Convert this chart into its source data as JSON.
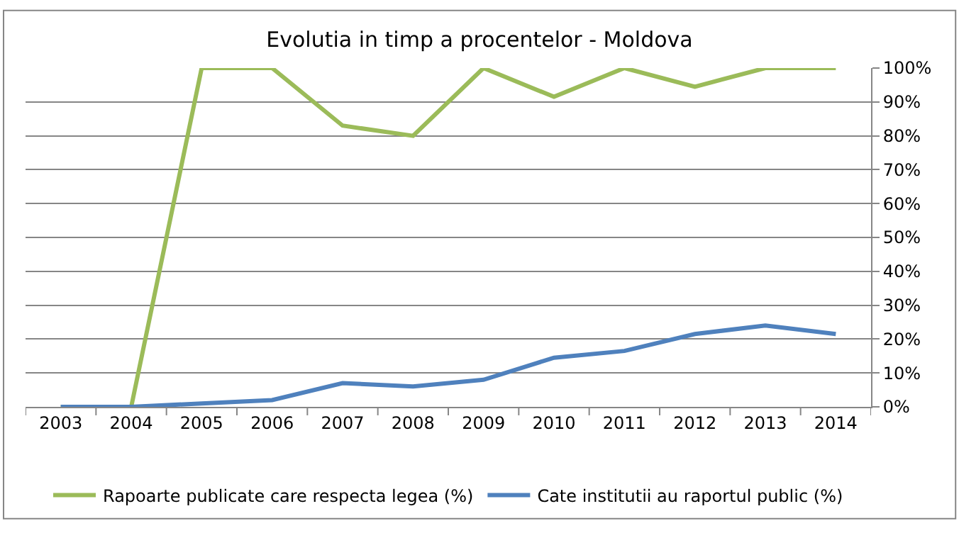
{
  "chart_data": {
    "type": "line",
    "title": "Evolutia in timp a procentelor - Moldova",
    "categories": [
      "2003",
      "2004",
      "2005",
      "2006",
      "2007",
      "2008",
      "2009",
      "2010",
      "2011",
      "2012",
      "2013",
      "2014"
    ],
    "series": [
      {
        "name": "Rapoarte publicate care respecta legea (%)",
        "color": "#9bbb59",
        "values": [
          0,
          0,
          100,
          100,
          83,
          80,
          100,
          91.5,
          100,
          94.5,
          100,
          100
        ]
      },
      {
        "name": "Cate institutii au raportul public (%)",
        "color": "#4f81bd",
        "values": [
          0,
          0,
          1,
          2,
          7,
          6,
          8,
          14.5,
          16.5,
          21.5,
          24,
          21.5
        ]
      }
    ],
    "ylim": [
      0,
      100
    ],
    "yticks": [
      {
        "value": 0,
        "label": "0%"
      },
      {
        "value": 10,
        "label": "10%"
      },
      {
        "value": 20,
        "label": "20%"
      },
      {
        "value": 30,
        "label": "30%"
      },
      {
        "value": 40,
        "label": "40%"
      },
      {
        "value": 50,
        "label": "50%"
      },
      {
        "value": 60,
        "label": "60%"
      },
      {
        "value": 70,
        "label": "70%"
      },
      {
        "value": 80,
        "label": "80%"
      },
      {
        "value": 90,
        "label": "90%"
      },
      {
        "value": 100,
        "label": "100%"
      }
    ],
    "grid": "y",
    "legend": "bottom",
    "marker": "none",
    "line_style": "solid"
  }
}
